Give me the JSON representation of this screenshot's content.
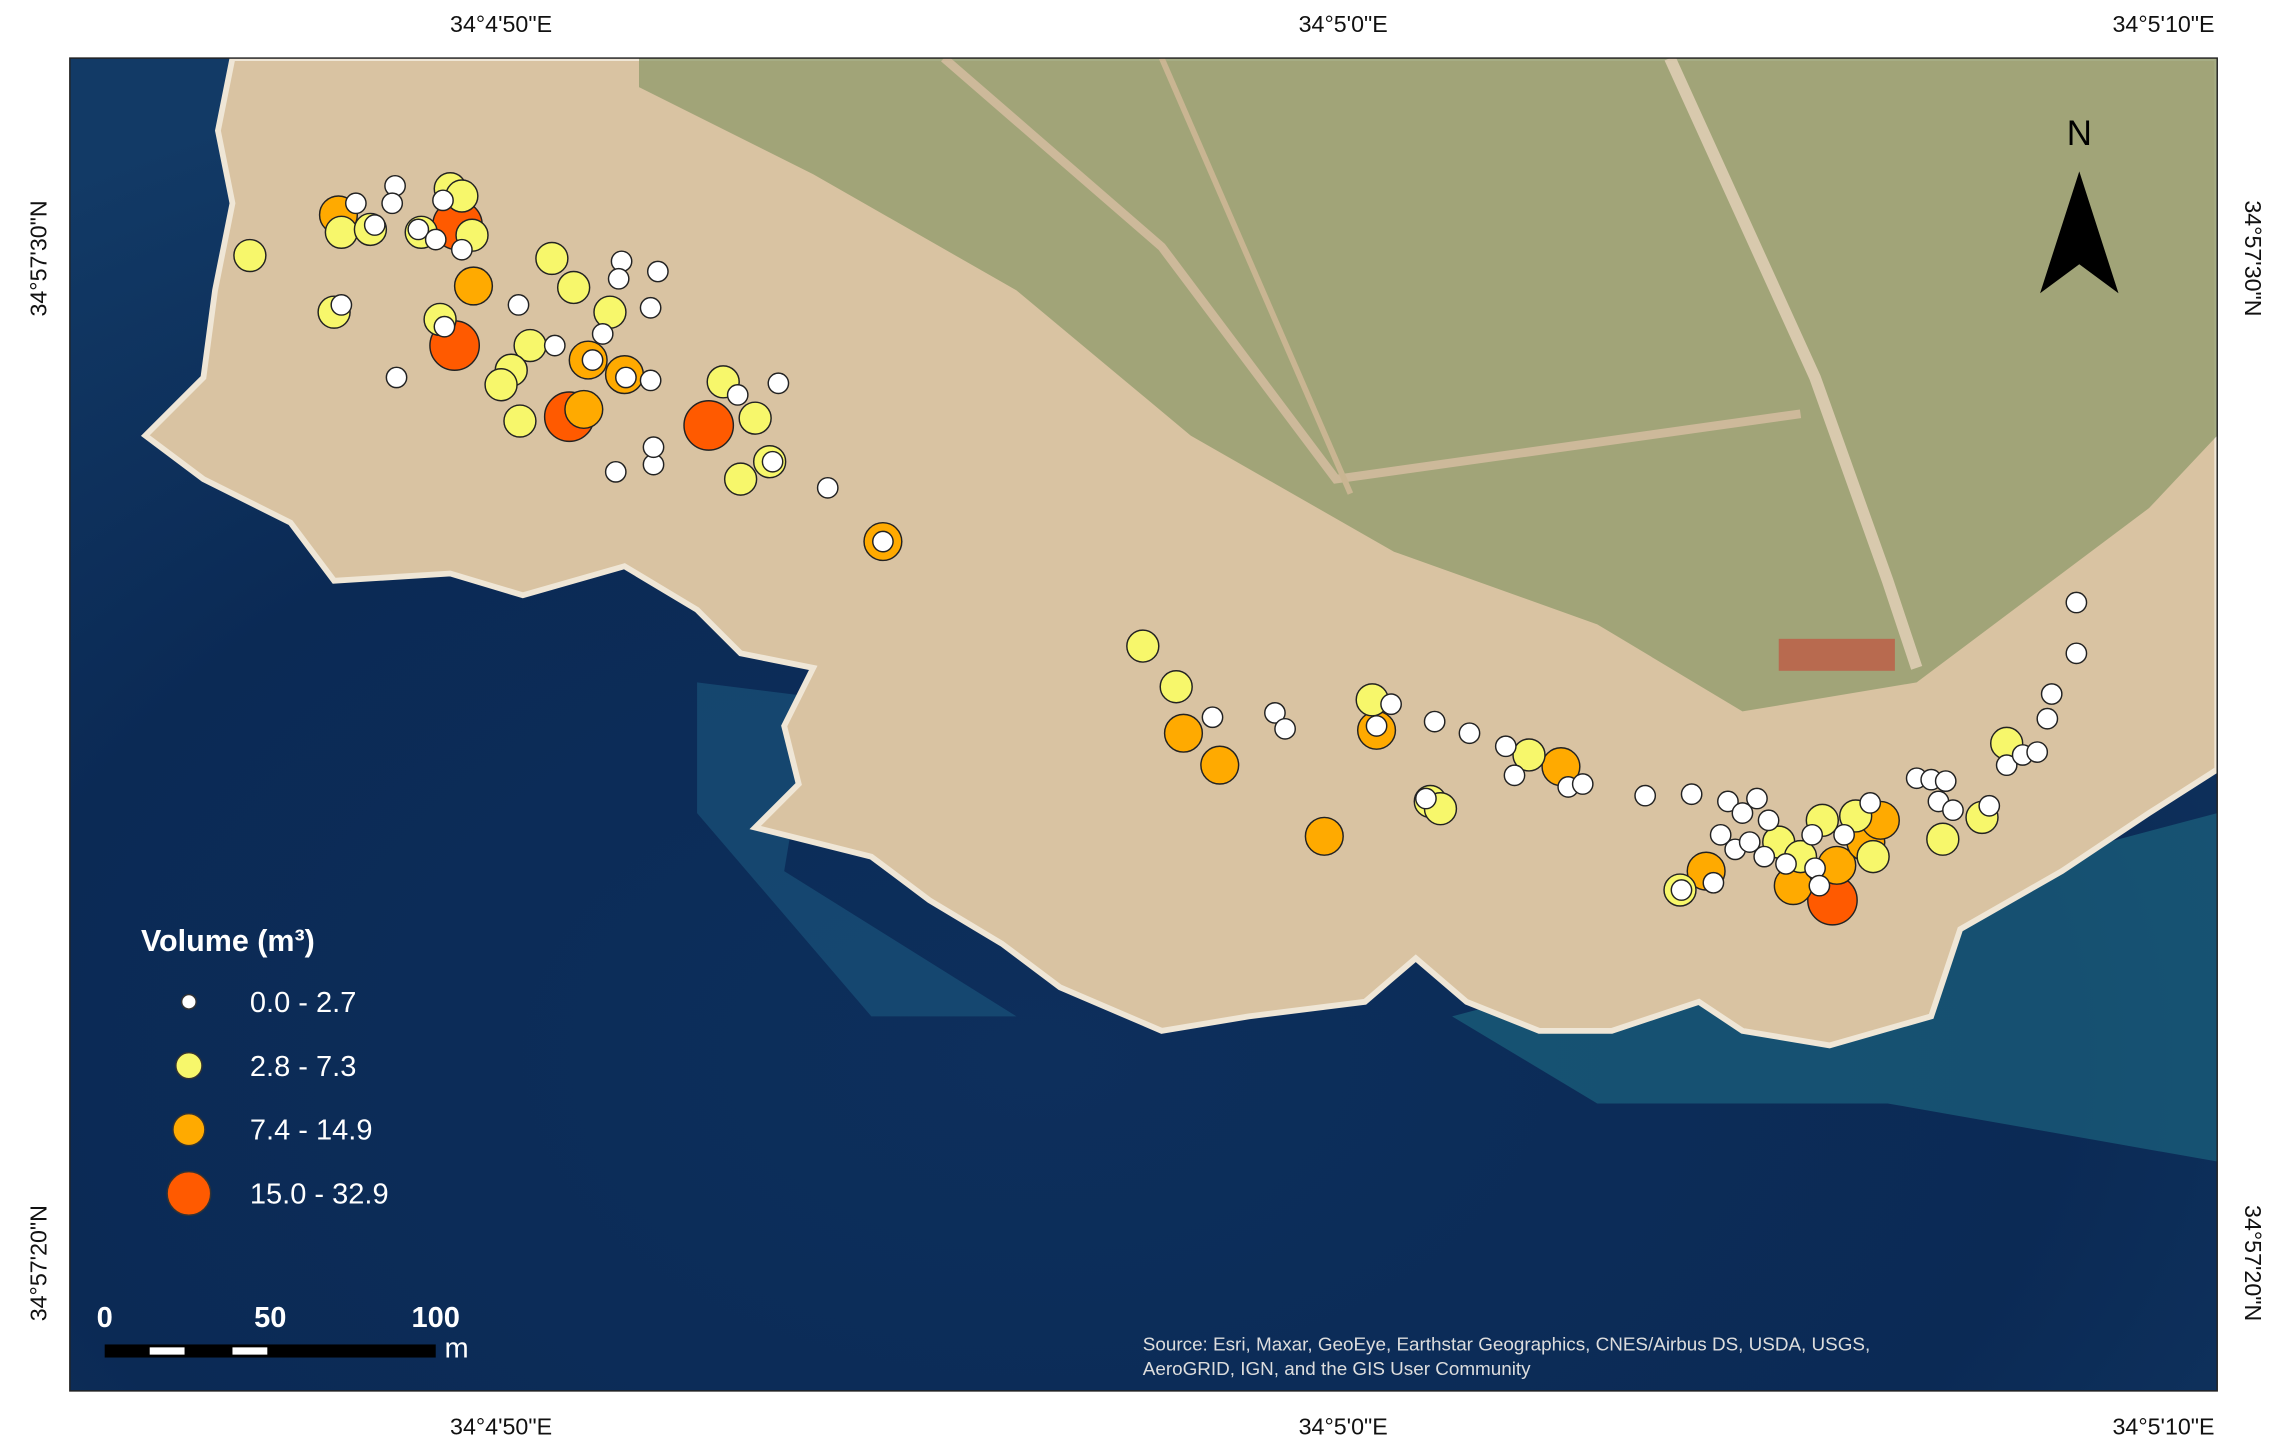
{
  "map": {
    "longitude_labels": [
      "34°4'50\"E",
      "34°5'0\"E",
      "34°5'10\"E"
    ],
    "latitude_labels": [
      "34°57'30\"N",
      "34°57'20\"N"
    ],
    "north": "N",
    "legend": {
      "title": "Volume (m³)",
      "classes": [
        {
          "label": "0.0 - 2.7",
          "color": "#ffffff"
        },
        {
          "label": "2.8 - 7.3",
          "color": "#f7f76b"
        },
        {
          "label": "7.4 - 14.9",
          "color": "#ffaa00"
        },
        {
          "label": "15.0 - 32.9",
          "color": "#ff5a00"
        }
      ]
    },
    "scale_bar": {
      "labels": [
        "0",
        "50",
        "100"
      ],
      "unit": "m"
    },
    "source": [
      "Source: Esri, Maxar, GeoEye, Earthstar Geographics, CNES/Airbus DS, USDA, USGS,",
      "AeroGRID, IGN, and the GIS User Community"
    ]
  }
}
